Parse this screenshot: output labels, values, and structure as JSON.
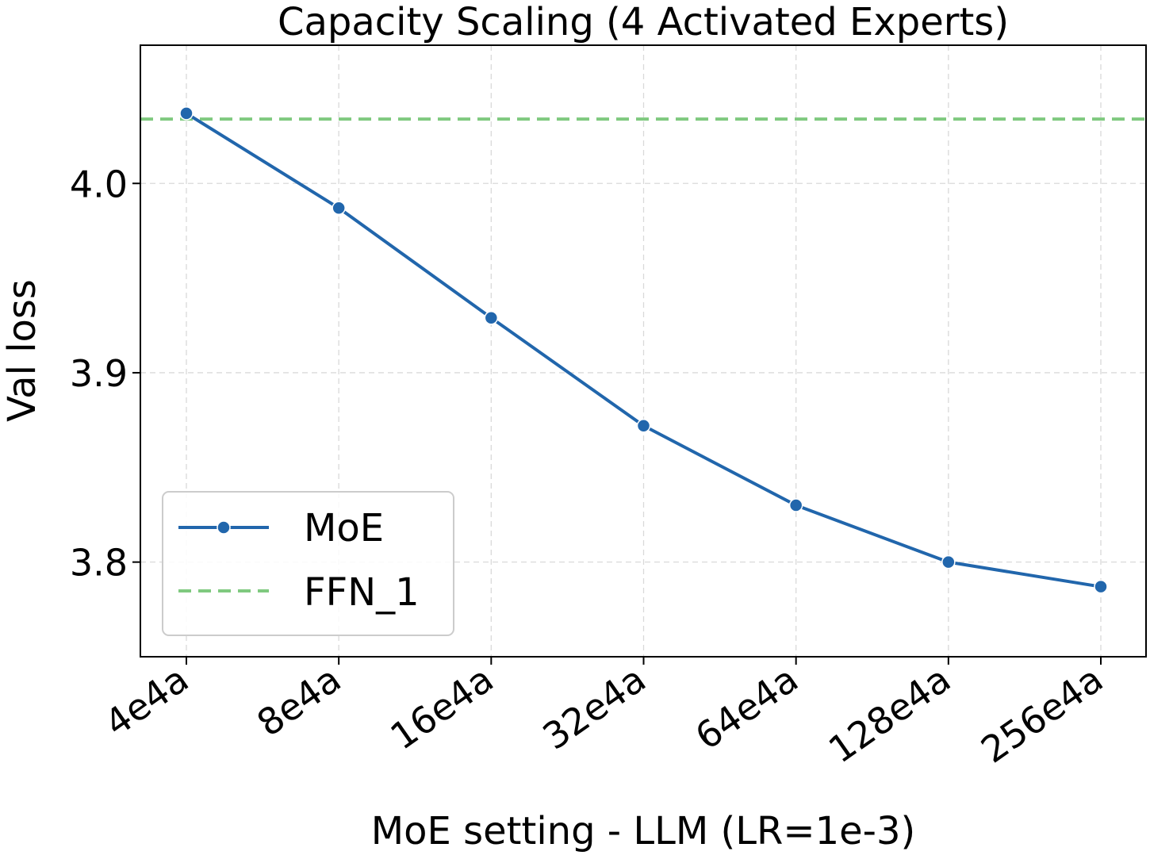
{
  "chart_data": {
    "type": "line",
    "title": "Capacity Scaling (4 Activated Experts)",
    "xlabel": "MoE setting - LLM (LR=1e-3)",
    "ylabel": "Val loss",
    "categories": [
      "4e4a",
      "8e4a",
      "16e4a",
      "32e4a",
      "64e4a",
      "128e4a",
      "256e4a"
    ],
    "series": [
      {
        "name": "MoE",
        "style": "solid-with-markers",
        "color": "#2166ac",
        "values": [
          4.037,
          3.987,
          3.929,
          3.872,
          3.83,
          3.8,
          3.787
        ]
      }
    ],
    "reference_lines": [
      {
        "name": "FFN_1",
        "style": "dashed",
        "color": "#7fc97f",
        "y": 4.034
      }
    ],
    "yticks": [
      3.8,
      3.9,
      4.0
    ],
    "ytick_labels": [
      "3.8",
      "3.9",
      "4.0"
    ],
    "ylim": [
      3.75,
      4.073
    ],
    "grid": true,
    "legend": "lower-left"
  }
}
